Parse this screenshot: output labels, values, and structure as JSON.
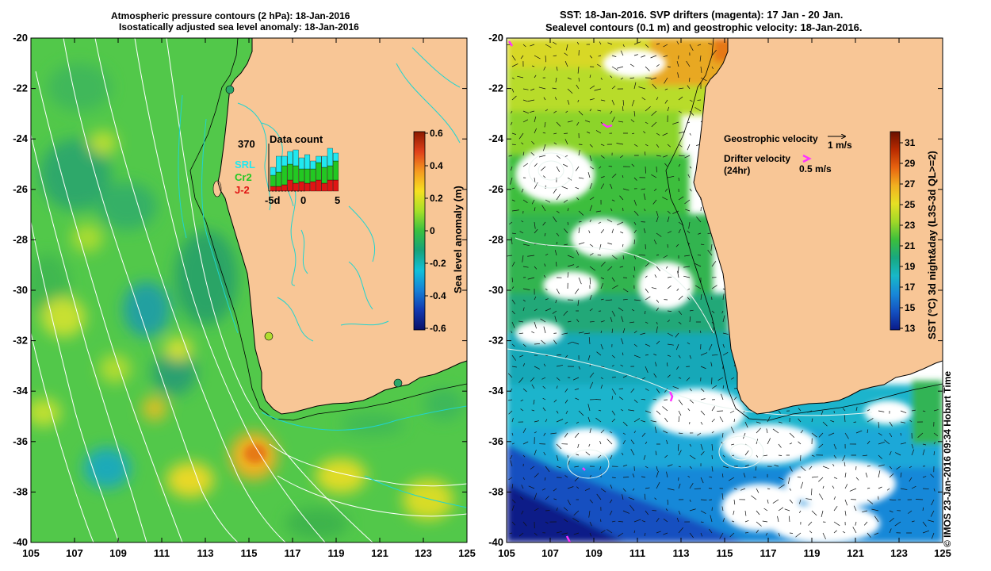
{
  "left_panel": {
    "title_line1": "Atmospheric pressure contours (2 hPa): 18-Jan-2016",
    "title_line2": "Isostatically adjusted sea level anomaly: 18-Jan-2016",
    "colorbar": {
      "label": "Sea level anomaly (m)",
      "ticks": [
        "0.6",
        "0.4",
        "0.2",
        "0",
        "-0.2",
        "-0.4",
        "-0.6"
      ],
      "colors": [
        "#8b1a00",
        "#e0401a",
        "#f59a20",
        "#f6e020",
        "#a6e028",
        "#3ac040",
        "#16a27a",
        "#12c0d8",
        "#1680d6",
        "#1238b0",
        "#0a1068"
      ]
    },
    "data_count": {
      "title": "Data count",
      "max_label": "370",
      "x_ticks": [
        "-5d",
        "0",
        "5"
      ],
      "legend": [
        "SRL",
        "Cr2",
        "J-2"
      ],
      "legend_colors": [
        "#20e8f0",
        "#22c822",
        "#e01414"
      ],
      "bars": [
        {
          "srl": 5,
          "cr2": 7,
          "j2": 3
        },
        {
          "srl": 10,
          "cr2": 9,
          "j2": 3
        },
        {
          "srl": 6,
          "cr2": 12,
          "j2": 4
        },
        {
          "srl": 8,
          "cr2": 10,
          "j2": 7
        },
        {
          "srl": 10,
          "cr2": 11,
          "j2": 5
        },
        {
          "srl": 7,
          "cr2": 8,
          "j2": 6
        },
        {
          "srl": 9,
          "cr2": 9,
          "j2": 5
        },
        {
          "srl": 5,
          "cr2": 8,
          "j2": 6
        },
        {
          "srl": 4,
          "cr2": 11,
          "j2": 7
        },
        {
          "srl": 7,
          "cr2": 10,
          "j2": 5
        },
        {
          "srl": 11,
          "cr2": 9,
          "j2": 7
        },
        {
          "srl": 5,
          "cr2": 12,
          "j2": 7
        }
      ]
    }
  },
  "right_panel": {
    "title_line1": "SST: 18-Jan-2016. SVP drifters (magenta): 17 Jan - 20 Jan.",
    "title_line2": "Sealevel contours (0.1 m) and geostrophic velocity: 18-Jan-2016.",
    "geostrophic_label": "Geostrophic velocity",
    "geostrophic_value": "1 m/s",
    "drifter_label": "Drifter velocity",
    "drifter_sub": "(24hr)",
    "drifter_value": "0.5 m/s",
    "colorbar": {
      "label": "SST (°C) 3d night&day (L3S-3d QL>=2)",
      "ticks": [
        "31",
        "29",
        "27",
        "25",
        "23",
        "21",
        "19",
        "17",
        "15",
        "13"
      ],
      "colors": [
        "#6a1000",
        "#b82a00",
        "#e86410",
        "#f2b020",
        "#e6e024",
        "#a0d828",
        "#3cbe3c",
        "#18a880",
        "#18b8c8",
        "#1888d8",
        "#1450c0",
        "#0a1a88"
      ]
    }
  },
  "axes": {
    "x_ticks": [
      "105",
      "107",
      "109",
      "111",
      "113",
      "115",
      "117",
      "119",
      "121",
      "123",
      "125"
    ],
    "y_ticks": [
      "-20",
      "-22",
      "-24",
      "-26",
      "-28",
      "-30",
      "-32",
      "-34",
      "-36",
      "-38",
      "-40"
    ]
  },
  "credit": "© IMOS 23-Jan-2016 09:34 Hobart Time",
  "colors": {
    "land": "#f8c696",
    "ocean_left": "#52c84a",
    "coast": "#000000",
    "bathy": "#20d4d0"
  }
}
